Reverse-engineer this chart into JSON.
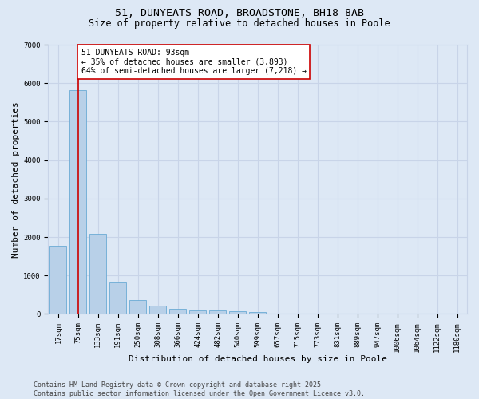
{
  "title": "51, DUNYEATS ROAD, BROADSTONE, BH18 8AB",
  "subtitle": "Size of property relative to detached houses in Poole",
  "xlabel": "Distribution of detached houses by size in Poole",
  "ylabel": "Number of detached properties",
  "categories": [
    "17sqm",
    "75sqm",
    "133sqm",
    "191sqm",
    "250sqm",
    "308sqm",
    "366sqm",
    "424sqm",
    "482sqm",
    "540sqm",
    "599sqm",
    "657sqm",
    "715sqm",
    "773sqm",
    "831sqm",
    "889sqm",
    "947sqm",
    "1006sqm",
    "1064sqm",
    "1122sqm",
    "1180sqm"
  ],
  "values": [
    1780,
    5820,
    2080,
    820,
    370,
    210,
    130,
    100,
    85,
    70,
    55,
    0,
    0,
    0,
    0,
    0,
    0,
    0,
    0,
    0,
    0
  ],
  "bar_color": "#b8d0e8",
  "bar_edge_color": "#6aaad4",
  "vline_x_pos": 1.0,
  "vline_color": "#cc0000",
  "annotation_box_text": "51 DUNYEATS ROAD: 93sqm\n← 35% of detached houses are smaller (3,893)\n64% of semi-detached houses are larger (7,218) →",
  "annotation_box_color": "#cc0000",
  "annotation_box_bg": "#ffffff",
  "ylim": [
    0,
    7000
  ],
  "yticks": [
    0,
    1000,
    2000,
    3000,
    4000,
    5000,
    6000,
    7000
  ],
  "grid_color": "#c8d4e8",
  "background_color": "#dde8f5",
  "footer_line1": "Contains HM Land Registry data © Crown copyright and database right 2025.",
  "footer_line2": "Contains public sector information licensed under the Open Government Licence v3.0.",
  "title_fontsize": 9.5,
  "subtitle_fontsize": 8.5,
  "xlabel_fontsize": 8,
  "ylabel_fontsize": 8,
  "tick_fontsize": 6.5,
  "annotation_fontsize": 7,
  "footer_fontsize": 6
}
